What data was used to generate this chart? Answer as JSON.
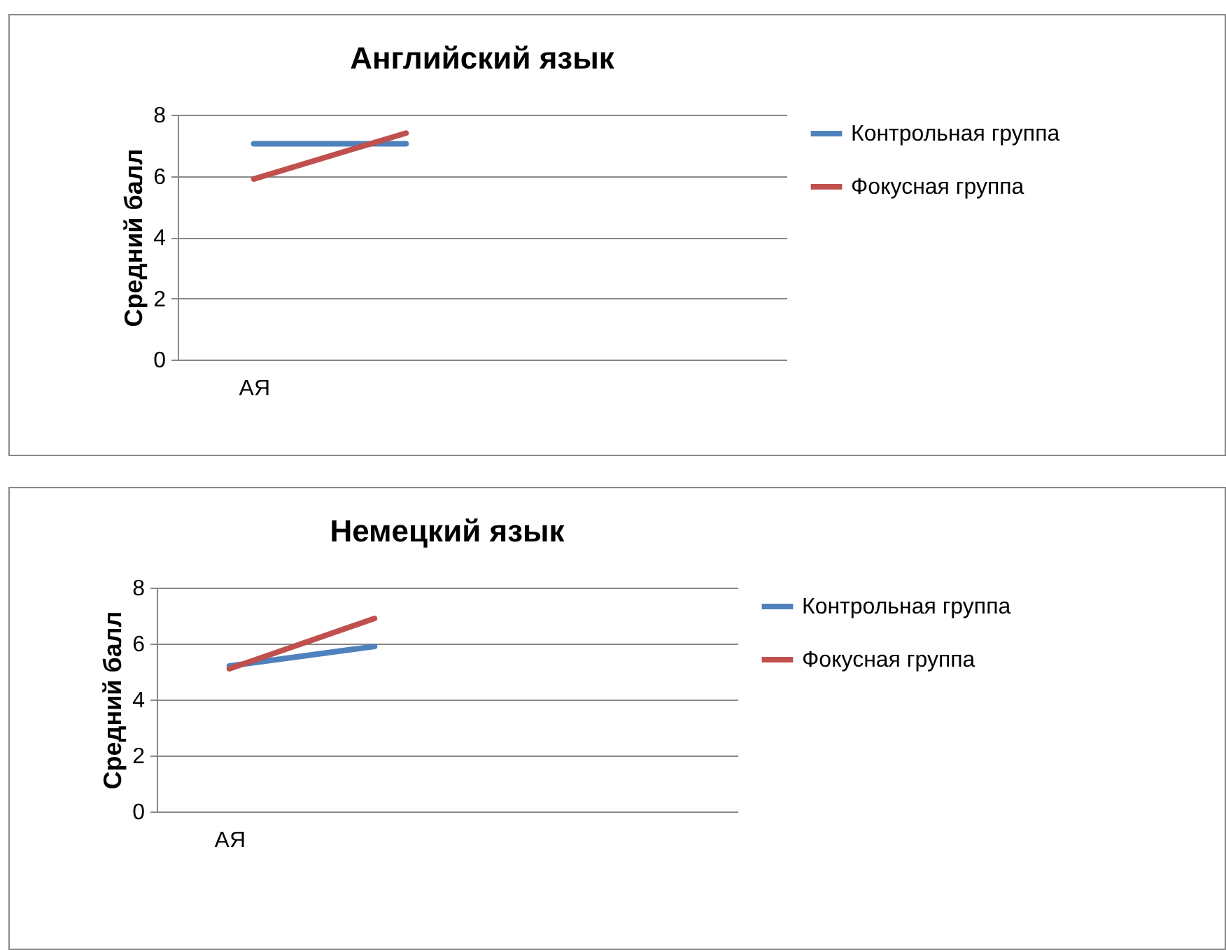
{
  "chart_data": [
    {
      "type": "line",
      "title": "Английский язык",
      "ylabel": "Средний балл",
      "categories": [
        "АЯ",
        null,
        null,
        null
      ],
      "ylim": [
        0,
        8
      ],
      "yticks": [
        0,
        2,
        4,
        6,
        8
      ],
      "grid": "y",
      "legend": "right",
      "marker": "none",
      "series": [
        {
          "name": "Контрольная группа",
          "color": "#4f81bd",
          "values": [
            7.05,
            7.05,
            null,
            null
          ]
        },
        {
          "name": "Фокусная группа",
          "color": "#c0504d",
          "values": [
            5.9,
            7.4,
            null,
            null
          ]
        }
      ]
    },
    {
      "type": "line",
      "title": "Немецкий язык",
      "ylabel": "Средний балл",
      "categories": [
        "АЯ",
        null,
        null,
        null
      ],
      "ylim": [
        0,
        8
      ],
      "yticks": [
        0,
        2,
        4,
        6,
        8
      ],
      "grid": "y",
      "legend": "right",
      "marker": "none",
      "series": [
        {
          "name": "Контрольная группа",
          "color": "#4f81bd",
          "values": [
            5.2,
            5.9,
            null,
            null
          ]
        },
        {
          "name": "Фокусная группа",
          "color": "#c0504d",
          "values": [
            5.1,
            6.9,
            null,
            null
          ]
        }
      ]
    }
  ]
}
